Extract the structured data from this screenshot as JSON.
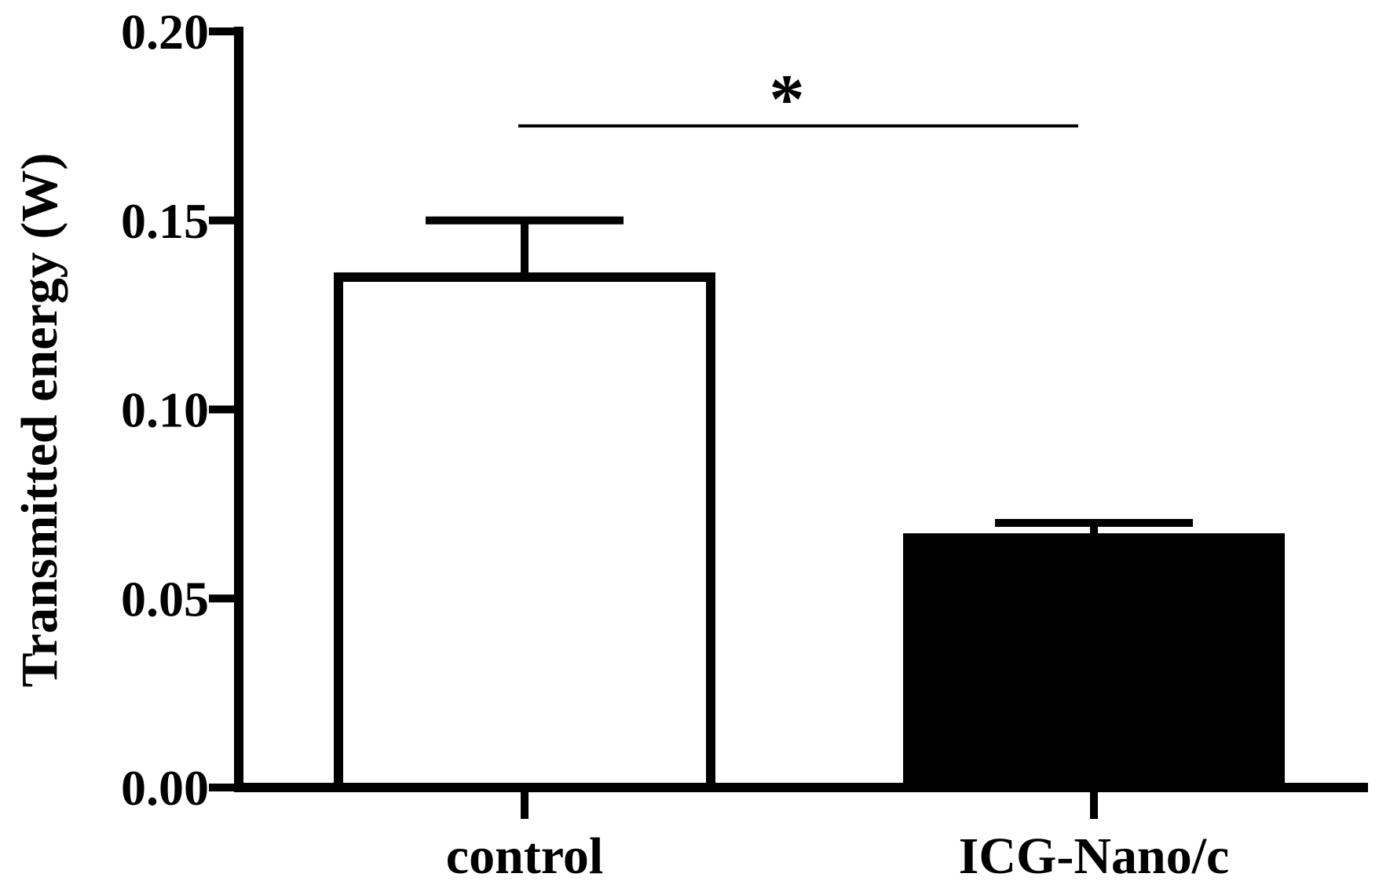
{
  "chart_data": {
    "type": "bar",
    "categories": [
      "control",
      "ICG-Nano/c"
    ],
    "values": [
      0.135,
      0.066
    ],
    "errors": [
      0.015,
      0.004
    ],
    "bar_fills": [
      "#ffffff",
      "#000000"
    ],
    "ylabel": "Transmitted energy (W)",
    "xlabel": "",
    "ylim": [
      0,
      0.2
    ],
    "yticks": [
      0.0,
      0.05,
      0.1,
      0.15,
      0.2
    ],
    "ytick_labels": [
      "0.00",
      "0.05",
      "0.10",
      "0.15",
      "0.20"
    ],
    "grid": false,
    "significance": {
      "between": [
        "control",
        "ICG-Nano/c"
      ],
      "level": 0.175,
      "label": "*"
    }
  }
}
